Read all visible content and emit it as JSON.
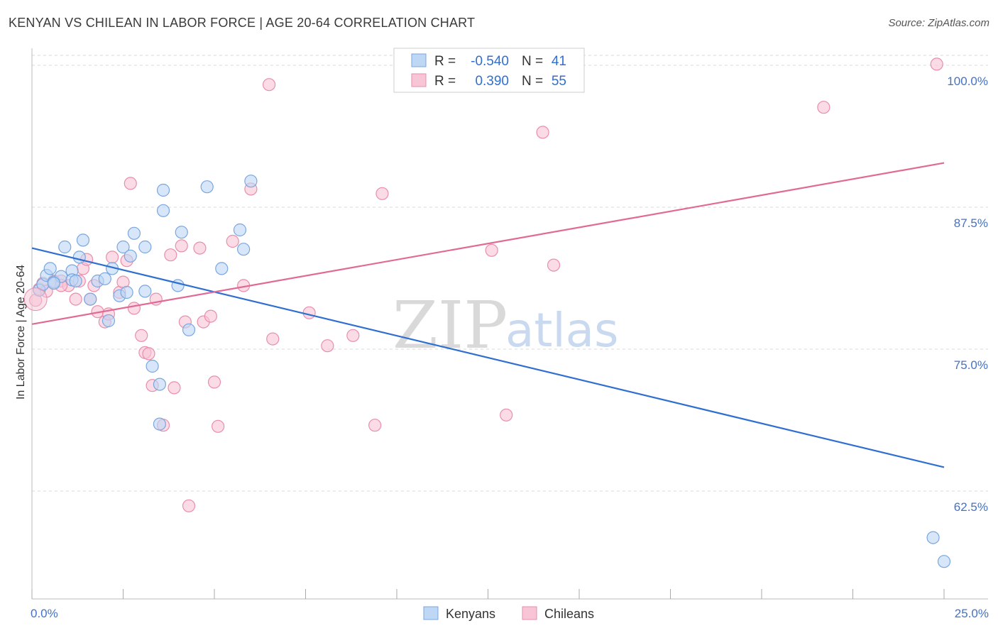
{
  "header": {
    "title": "KENYAN VS CHILEAN IN LABOR FORCE | AGE 20-64 CORRELATION CHART",
    "source": "Source: ZipAtlas.com"
  },
  "watermark": {
    "zip": "ZIP",
    "atlas": "atlas"
  },
  "legend": {
    "rows": [
      {
        "r_label": "R =",
        "r_value": "-0.540",
        "n_label": "N =",
        "n_value": "41"
      },
      {
        "r_label": "R =",
        "r_value": "0.390",
        "n_label": "N =",
        "n_value": "55"
      }
    ]
  },
  "bottom_legend": {
    "kenyans": "Kenyans",
    "chileans": "Chileans"
  },
  "colors": {
    "kenyan_fill": "#bdd7f5",
    "kenyan_stroke": "#7aa6df",
    "kenyan_line": "#2f6fd0",
    "chilean_fill": "#f8c5d6",
    "chilean_stroke": "#e98eab",
    "chilean_line": "#e06a94",
    "grid": "#d9d9d9",
    "tick_label": "#4472c4"
  },
  "chart_data": {
    "type": "scatter",
    "title": "KENYAN VS CHILEAN IN LABOR FORCE | AGE 20-64 CORRELATION CHART",
    "xlabel": "",
    "ylabel": "In Labor Force | Age 20-64",
    "xlim": [
      0,
      25
    ],
    "ylim": [
      53,
      101.5
    ],
    "x_tick_labels": [
      "0.0%",
      "25.0%"
    ],
    "y_ticks": [
      62.5,
      75.0,
      87.5,
      100.0
    ],
    "y_tick_labels": [
      "62.5%",
      "75.0%",
      "87.5%",
      "100.0%"
    ],
    "grid": true,
    "legend_position": "top-center",
    "series": [
      {
        "name": "Kenyans",
        "points": [
          [
            0.2,
            80.2
          ],
          [
            0.3,
            80.7
          ],
          [
            0.4,
            81.5
          ],
          [
            0.5,
            82.1
          ],
          [
            0.6,
            80.9
          ],
          [
            0.8,
            81.4
          ],
          [
            0.9,
            84.0
          ],
          [
            1.1,
            81.9
          ],
          [
            1.1,
            81.1
          ],
          [
            1.3,
            83.1
          ],
          [
            1.4,
            84.6
          ],
          [
            1.6,
            79.4
          ],
          [
            1.8,
            81.0
          ],
          [
            2.0,
            81.2
          ],
          [
            2.1,
            77.5
          ],
          [
            2.2,
            82.1
          ],
          [
            2.4,
            79.7
          ],
          [
            2.5,
            84.0
          ],
          [
            2.6,
            80.0
          ],
          [
            2.7,
            83.2
          ],
          [
            2.8,
            85.2
          ],
          [
            3.1,
            80.1
          ],
          [
            3.1,
            84.0
          ],
          [
            3.3,
            73.5
          ],
          [
            3.5,
            71.9
          ],
          [
            3.5,
            68.4
          ],
          [
            3.6,
            89.0
          ],
          [
            3.6,
            87.2
          ],
          [
            4.0,
            80.6
          ],
          [
            4.1,
            85.3
          ],
          [
            4.3,
            76.7
          ],
          [
            4.8,
            89.3
          ],
          [
            5.2,
            82.1
          ],
          [
            5.7,
            85.5
          ],
          [
            5.8,
            83.8
          ],
          [
            6.0,
            89.8
          ],
          [
            10.1,
            100.1
          ],
          [
            24.7,
            58.4
          ],
          [
            25.0,
            56.3
          ],
          [
            1.2,
            81.0
          ],
          [
            0.6,
            80.8
          ]
        ]
      },
      {
        "name": "Chileans",
        "points": [
          [
            0.1,
            79.3
          ],
          [
            0.2,
            80.3
          ],
          [
            0.3,
            80.8
          ],
          [
            0.4,
            80.1
          ],
          [
            0.6,
            81.0
          ],
          [
            0.8,
            81.0
          ],
          [
            1.0,
            80.6
          ],
          [
            1.2,
            79.4
          ],
          [
            1.4,
            82.1
          ],
          [
            1.6,
            79.4
          ],
          [
            1.7,
            80.6
          ],
          [
            1.8,
            78.3
          ],
          [
            2.0,
            77.4
          ],
          [
            2.1,
            78.1
          ],
          [
            2.2,
            83.1
          ],
          [
            2.4,
            80.0
          ],
          [
            2.5,
            80.9
          ],
          [
            2.6,
            82.8
          ],
          [
            2.7,
            89.6
          ],
          [
            2.8,
            78.6
          ],
          [
            3.0,
            76.2
          ],
          [
            3.1,
            74.7
          ],
          [
            3.2,
            74.6
          ],
          [
            3.3,
            71.8
          ],
          [
            3.4,
            79.4
          ],
          [
            3.6,
            68.3
          ],
          [
            3.8,
            83.3
          ],
          [
            3.9,
            71.6
          ],
          [
            4.1,
            84.1
          ],
          [
            4.2,
            77.4
          ],
          [
            4.3,
            61.2
          ],
          [
            4.6,
            83.9
          ],
          [
            4.7,
            77.4
          ],
          [
            4.9,
            77.9
          ],
          [
            5.0,
            72.1
          ],
          [
            5.1,
            68.2
          ],
          [
            5.5,
            84.5
          ],
          [
            5.8,
            80.6
          ],
          [
            6.0,
            89.1
          ],
          [
            6.5,
            98.3
          ],
          [
            6.6,
            75.9
          ],
          [
            7.6,
            78.2
          ],
          [
            8.1,
            75.3
          ],
          [
            8.8,
            76.2
          ],
          [
            9.4,
            68.3
          ],
          [
            9.6,
            88.7
          ],
          [
            12.6,
            83.7
          ],
          [
            13.0,
            69.2
          ],
          [
            14.0,
            94.1
          ],
          [
            14.3,
            82.4
          ],
          [
            21.7,
            96.3
          ],
          [
            24.8,
            100.1
          ],
          [
            1.3,
            81.0
          ],
          [
            0.8,
            80.6
          ],
          [
            1.5,
            82.9
          ]
        ]
      }
    ],
    "trend_lines": [
      {
        "name": "Kenyans",
        "x": [
          0,
          25
        ],
        "y": [
          83.9,
          64.6
        ]
      },
      {
        "name": "Chileans",
        "x": [
          0,
          25
        ],
        "y": [
          77.2,
          91.4
        ]
      }
    ]
  }
}
